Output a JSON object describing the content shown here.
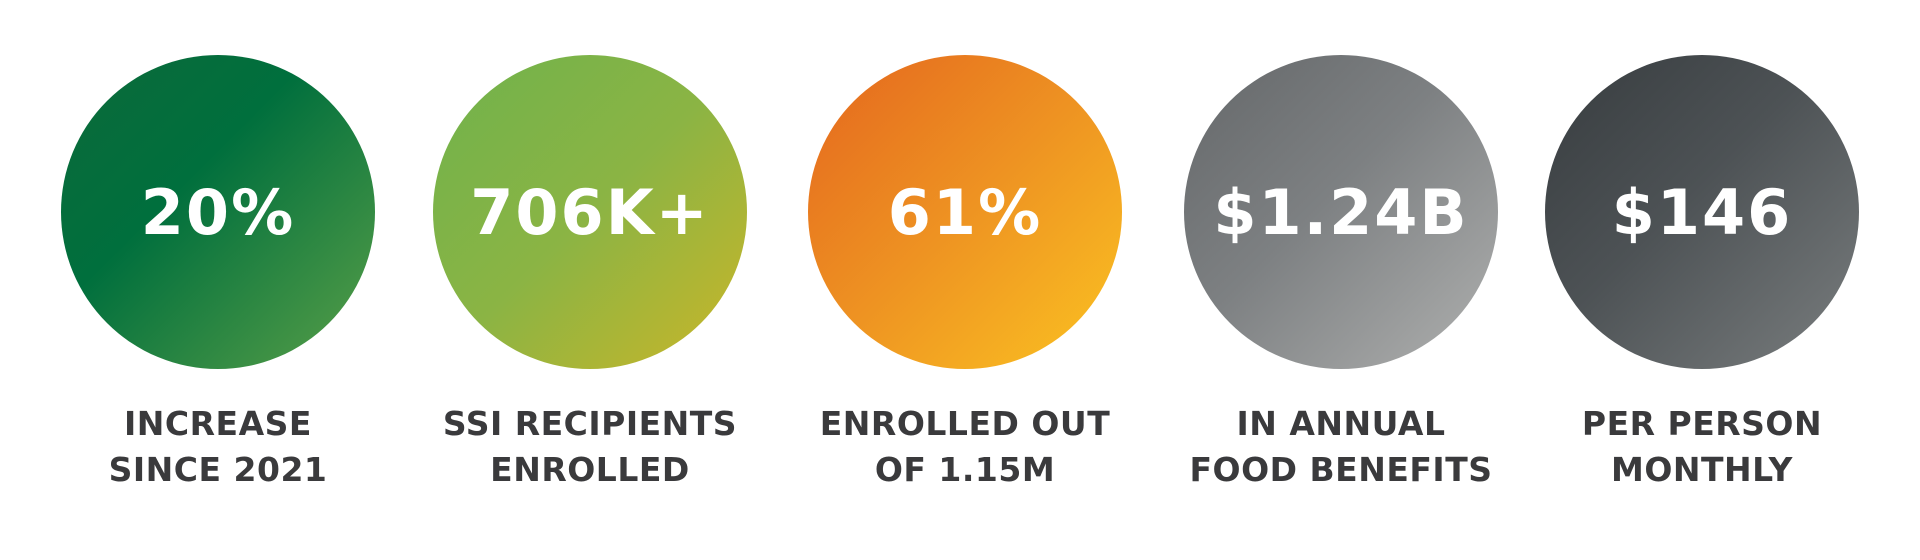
{
  "stats": [
    {
      "value": "20%",
      "label": [
        "INCREASE",
        "SINCE 2021"
      ]
    },
    {
      "value": "706K+",
      "label": [
        "SSI RECIPIENTS",
        "ENROLLED"
      ]
    },
    {
      "value": "61%",
      "label": [
        "ENROLLED OUT",
        "OF 1.15M"
      ]
    },
    {
      "value": "$1.24B",
      "label": [
        "IN ANNUAL",
        "FOOD BENEFITS"
      ]
    },
    {
      "value": "$146",
      "label": [
        "PER PERSON",
        "MONTHLY"
      ]
    }
  ]
}
